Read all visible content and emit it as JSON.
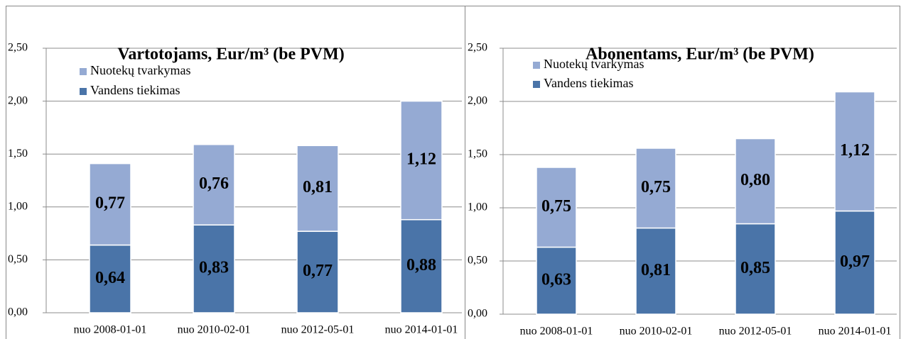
{
  "chart_data": [
    {
      "type": "bar",
      "stacked": true,
      "title": "Vartotojams, Eur/m³ (be PVM)",
      "categories": [
        "nuo 2008-01-01",
        "nuo 2010-02-01",
        "nuo 2012-05-01",
        "nuo 2014-01-01"
      ],
      "series": [
        {
          "name": "Vandens tiekimas",
          "color": "#4a74a8",
          "values": [
            0.64,
            0.83,
            0.77,
            0.88
          ],
          "value_labels": [
            "0,64",
            "0,83",
            "0,77",
            "0,88"
          ]
        },
        {
          "name": "Nuotekų tvarkymas",
          "color": "#95aad3",
          "values": [
            0.77,
            0.76,
            0.81,
            1.12
          ],
          "value_labels": [
            "0,77",
            "0,76",
            "0,81",
            "1,12"
          ]
        }
      ],
      "ylim": [
        0,
        2.5
      ],
      "yticks": [
        {
          "value": 0,
          "label": "0,00"
        },
        {
          "value": 0.5,
          "label": "0,50"
        },
        {
          "value": 1,
          "label": "1,00"
        },
        {
          "value": 1.5,
          "label": "1,50"
        },
        {
          "value": 2,
          "label": "2,00"
        },
        {
          "value": 2.5,
          "label": "2,50"
        }
      ],
      "grid": true,
      "legend": "top-left"
    },
    {
      "type": "bar",
      "stacked": true,
      "title": "Abonentams, Eur/m³ (be PVM)",
      "categories": [
        "nuo 2008-01-01",
        "nuo 2010-02-01",
        "nuo 2012-05-01",
        "nuo 2014-01-01"
      ],
      "series": [
        {
          "name": "Vandens tiekimas",
          "color": "#4a74a8",
          "values": [
            0.63,
            0.81,
            0.85,
            0.97
          ],
          "value_labels": [
            "0,63",
            "0,81",
            "0,85",
            "0,97"
          ]
        },
        {
          "name": "Nuotekų tvarkymas",
          "color": "#95aad3",
          "values": [
            0.75,
            0.75,
            0.8,
            1.12
          ],
          "value_labels": [
            "0,75",
            "0,75",
            "0,80",
            "1,12"
          ]
        }
      ],
      "ylim": [
        0,
        2.5
      ],
      "yticks": [
        {
          "value": 0,
          "label": "0,00"
        },
        {
          "value": 0.5,
          "label": "0,50"
        },
        {
          "value": 1,
          "label": "1,00"
        },
        {
          "value": 1.5,
          "label": "1,50"
        },
        {
          "value": 2,
          "label": "2,00"
        },
        {
          "value": 2.5,
          "label": "2,50"
        }
      ],
      "grid": true,
      "legend": "top-left"
    }
  ]
}
